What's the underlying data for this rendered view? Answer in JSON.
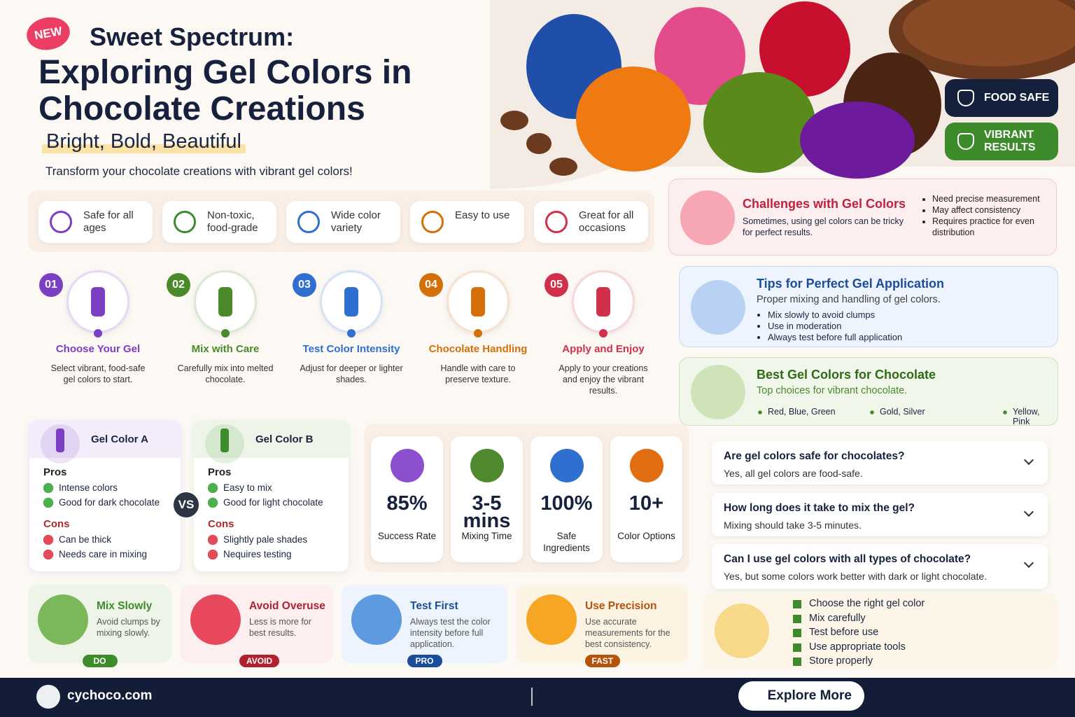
{
  "header": {
    "badge": "NEW",
    "kicker": "Sweet Spectrum:",
    "title_lines": [
      "Exploring Gel Colors in",
      "Chocolate Creations"
    ],
    "tagline": "Bright, Bold, Beautiful",
    "intro": "Transform your chocolate creations with vibrant gel colors!"
  },
  "badges": [
    "FOOD SAFE",
    "VIBRANT RESULTS"
  ],
  "features": [
    "Safe for all ages",
    "Non-toxic, food-grade",
    "Wide color variety",
    "Easy to use",
    "Great for all occasions"
  ],
  "steps": [
    {
      "number": "01",
      "title": "Choose Your Gel",
      "text": "Select vibrant, food-safe gel colors to start."
    },
    {
      "number": "02",
      "title": "Mix with Care",
      "text": "Carefully mix into melted chocolate."
    },
    {
      "number": "03",
      "title": "Test Color Intensity",
      "text": "Adjust for deeper or lighter shades."
    },
    {
      "number": "04",
      "title": "Chocolate Handling",
      "text": "Handle with care to preserve texture."
    },
    {
      "number": "05",
      "title": "Apply and Enjoy",
      "text": "Apply to your creations and enjoy the vibrant results."
    }
  ],
  "challenges": {
    "title": "Challenges with Gel Colors",
    "text": "Sometimes, using gel colors can be tricky for perfect results.",
    "items": [
      "Need precise measurement",
      "May affect consistency",
      "Requires practice for even distribution"
    ]
  },
  "tips": {
    "title": "Tips for Perfect Gel Application",
    "subtitle": "Proper mixing and handling of gel colors.",
    "items": [
      "Mix slowly to avoid clumps",
      "Use in moderation",
      "Always test before full application"
    ]
  },
  "best": {
    "title": "Best Gel Colors for Chocolate",
    "subtitle": "Top choices for vibrant chocolate.",
    "items": [
      "Red, Blue, Green",
      "Gold, Silver",
      "Yellow, Pink"
    ]
  },
  "comparison": {
    "vs": "VS",
    "products": [
      {
        "name": "Gel Color A",
        "pros_label": "Pros",
        "pros": [
          "Intense colors",
          "Good for dark chocolate"
        ],
        "cons_label": "Cons",
        "cons": [
          "Can be thick",
          "Needs care in mixing"
        ]
      },
      {
        "name": "Gel Color B",
        "pros_label": "Pros",
        "pros": [
          "Easy to mix",
          "Good for light chocolate"
        ],
        "cons_label": "Cons",
        "cons": [
          "Slightly pale shades",
          "Nequires testing"
        ]
      }
    ]
  },
  "stats": [
    {
      "value": "85%",
      "label": "Success Rate"
    },
    {
      "value": "3-5 mins",
      "label": "Mixing Time"
    },
    {
      "value": "100%",
      "label": "Safe Ingredients"
    },
    {
      "value": "10+",
      "label": "Color Options"
    }
  ],
  "faq": [
    {
      "q": "Are gel colors safe for chocolates?",
      "a": "Yes, all gel colors are food-safe."
    },
    {
      "q": "How long does it take to mix the gel?",
      "a": "Mixing should take 3-5 minutes."
    },
    {
      "q": "Can I use gel colors with all types of chocolate?",
      "a": "Yes, but some colors work better with dark or light chocolate."
    }
  ],
  "checklist": [
    "Choose the right gel color",
    "Mix carefully",
    "Test before use",
    "Use appropriate tools",
    "Store properly"
  ],
  "tip_cards": [
    {
      "title": "Mix Slowly",
      "text": "Avoid clumps by mixing slowly.",
      "tag": "DO"
    },
    {
      "title": "Avoid Overuse",
      "text": "Less is more for best results.",
      "tag": "AVOID"
    },
    {
      "title": "Test First",
      "text": "Always test the color intensity before full application.",
      "tag": "PRO"
    },
    {
      "title": "Use Precision",
      "text": "Use accurate measurements for the best consistency.",
      "tag": "FAST"
    }
  ],
  "footer": {
    "site": "cychoco.com",
    "button": "Explore More"
  }
}
